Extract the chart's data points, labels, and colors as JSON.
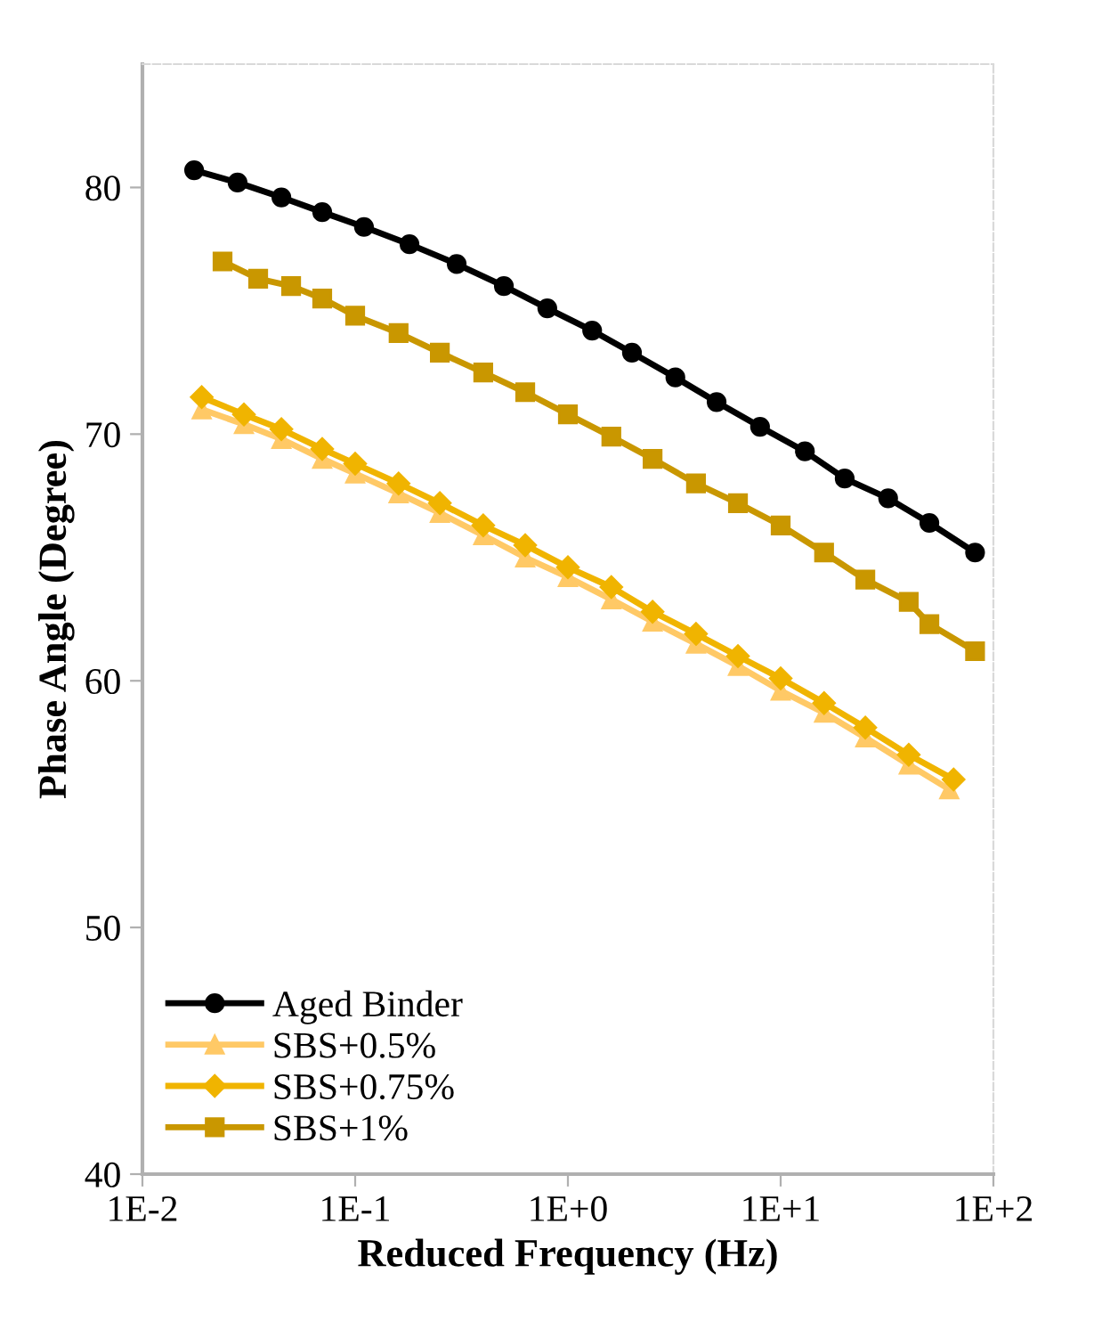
{
  "chart_data": {
    "type": "line",
    "xlabel": "Reduced Frequency (Hz)",
    "ylabel": "Phase Angle (Degree)",
    "log": "x",
    "xlim": [
      0.01,
      100
    ],
    "xticks": [
      {
        "value": 0.01,
        "label": "1E-2"
      },
      {
        "value": 0.1,
        "label": "1E-1"
      },
      {
        "value": 1,
        "label": "1E+0"
      },
      {
        "value": 10,
        "label": "1E+1"
      },
      {
        "value": 100,
        "label": "1E+2"
      }
    ],
    "ylim": [
      40,
      85
    ],
    "yticks": [
      40,
      50,
      60,
      70,
      80
    ],
    "grid": false,
    "legend": "bottom left",
    "line_style": "solid",
    "series": [
      {
        "name": "Aged Binder",
        "color": "#000000",
        "marker": "circle",
        "x": [
          0.0175,
          0.028,
          0.045,
          0.07,
          0.11,
          0.18,
          0.3,
          0.5,
          0.8,
          1.3,
          2.0,
          3.2,
          5.0,
          8.0,
          13,
          20,
          32,
          50,
          82
        ],
        "values": [
          80.7,
          80.2,
          79.6,
          79.0,
          78.4,
          77.7,
          76.9,
          76.0,
          75.1,
          74.2,
          73.3,
          72.3,
          71.3,
          70.3,
          69.3,
          68.2,
          67.4,
          66.4,
          65.2
        ]
      },
      {
        "name": "SBS+0.5%",
        "color": "#ffc966",
        "marker": "triangle",
        "x": [
          0.019,
          0.03,
          0.045,
          0.07,
          0.1,
          0.16,
          0.25,
          0.4,
          0.63,
          1.0,
          1.6,
          2.5,
          4.0,
          6.3,
          10,
          16,
          25,
          40,
          62
        ],
        "values": [
          71.0,
          70.4,
          69.8,
          69.0,
          68.4,
          67.6,
          66.8,
          65.9,
          65.0,
          64.2,
          63.3,
          62.4,
          61.5,
          60.6,
          59.6,
          58.7,
          57.7,
          56.6,
          55.6
        ]
      },
      {
        "name": "SBS+0.75%",
        "color": "#f0b400",
        "marker": "diamond",
        "x": [
          0.019,
          0.03,
          0.045,
          0.07,
          0.1,
          0.16,
          0.25,
          0.4,
          0.63,
          1.0,
          1.6,
          2.5,
          4.0,
          6.3,
          10,
          16,
          25,
          40,
          65
        ],
        "values": [
          71.5,
          70.8,
          70.2,
          69.4,
          68.8,
          68.0,
          67.2,
          66.3,
          65.5,
          64.6,
          63.8,
          62.8,
          61.9,
          61.0,
          60.1,
          59.1,
          58.1,
          57.0,
          56.0
        ]
      },
      {
        "name": "SBS+1%",
        "color": "#c99700",
        "marker": "square",
        "x": [
          0.0238,
          0.035,
          0.05,
          0.07,
          0.1,
          0.16,
          0.25,
          0.4,
          0.63,
          1.0,
          1.6,
          2.5,
          4.0,
          6.3,
          10,
          16,
          25,
          40,
          50,
          82
        ],
        "values": [
          77.0,
          76.3,
          76.0,
          75.5,
          74.8,
          74.1,
          73.3,
          72.5,
          71.7,
          70.8,
          69.9,
          69.0,
          68.0,
          67.2,
          66.3,
          65.2,
          64.1,
          63.2,
          62.3,
          61.2
        ]
      }
    ]
  }
}
